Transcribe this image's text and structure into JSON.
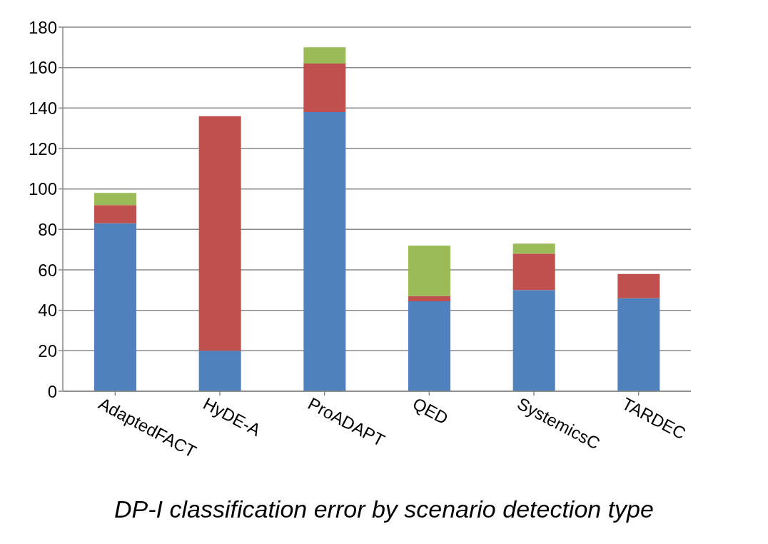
{
  "chart_data": {
    "type": "bar",
    "stacked": true,
    "xlabel": "DP-I classification error by scenario detection type",
    "categories": [
      "AdaptedFACT",
      "HyDE-A",
      "ProADAPT",
      "QED",
      "SystemicsC",
      "TARDEC"
    ],
    "series": [
      {
        "color": "#4f81bd",
        "values": [
          83,
          20,
          138,
          44.5,
          50,
          46
        ]
      },
      {
        "color": "#c0504d",
        "values": [
          9,
          116,
          24,
          2.5,
          18,
          12
        ]
      },
      {
        "color": "#9bbb59",
        "values": [
          6,
          null,
          8,
          25,
          5,
          null
        ]
      }
    ],
    "ylim": [
      0,
      180
    ],
    "yticks": [
      0,
      20,
      40,
      60,
      80,
      100,
      120,
      140,
      160,
      180
    ],
    "grid": "y",
    "legend": false
  }
}
